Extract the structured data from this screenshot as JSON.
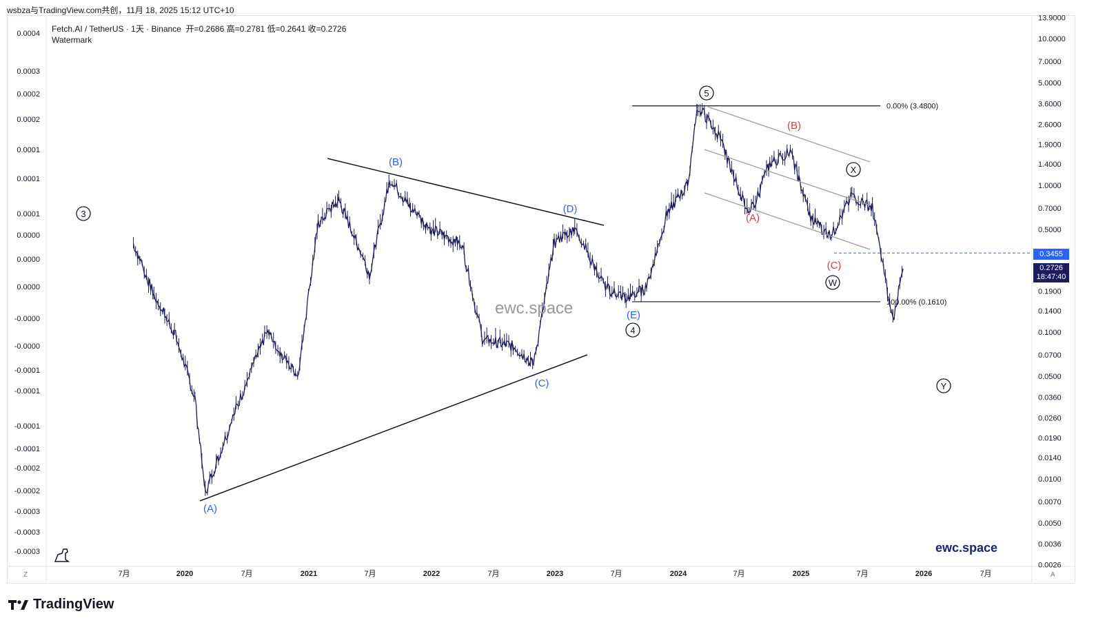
{
  "caption": "wsbza与TradingView.com共创，11月 18, 2025 15:12 UTC+10",
  "symbol_line": "Fetch.AI / TetherUS · 1天 · Binance",
  "ohlc": "开=0.2686  高=0.2781  低=0.2641  收=0.2726",
  "indicator_name": "Watermark",
  "watermark_text": "ewc.space",
  "brand_text": "ewc.space",
  "logo_text": "TradingView",
  "corner_left": "Z",
  "corner_right": "A",
  "dashed_price_tag": "0.3455",
  "last_price": "0.2726",
  "countdown": "18:47:40",
  "colors": {
    "candle": "#1a1a5e",
    "blue_label": "#2962ff",
    "red_label": "#e53935",
    "grid": "#e0e3eb",
    "dashed_line": "#2962ff"
  },
  "chart_data": {
    "type": "line",
    "title": "Fetch.AI / TetherUS · 1天 · Binance",
    "x_ticks": [
      "7月",
      "2020",
      "7月",
      "2021",
      "7月",
      "2022",
      "7月",
      "2023",
      "7月",
      "2024",
      "7月",
      "2025",
      "7月",
      "2026",
      "7月"
    ],
    "y_right_ticks": [
      "13.9000",
      "10.0000",
      "7.0000",
      "5.0000",
      "3.6000",
      "2.6000",
      "1.9000",
      "1.4000",
      "1.0000",
      "0.7000",
      "0.5000",
      "0.3455",
      "0.2726",
      "0.1900",
      "0.1400",
      "0.1000",
      "0.0700",
      "0.0500",
      "0.0360",
      "0.0260",
      "0.0190",
      "0.0140",
      "0.0100",
      "0.0070",
      "0.0050",
      "0.0036",
      "0.0026"
    ],
    "y_left_ticks": [
      "0.0004",
      "0.0003",
      "0.0002",
      "0.0002",
      "0.0001",
      "0.0001",
      "0.0001",
      "0.0000",
      "0.0000",
      "0.0000",
      "-0.0000",
      "-0.0000",
      "-0.0001",
      "-0.0001",
      "-0.0001",
      "-0.0001",
      "-0.0002",
      "-0.0002",
      "-0.0003",
      "-0.0003",
      "-0.0003"
    ],
    "log_scale": true,
    "series": [
      {
        "x": [
          "2019-08",
          "2019-10",
          "2019-12",
          "2020-02",
          "2020-03",
          "2020-06",
          "2020-09",
          "2020-12",
          "2021-02",
          "2021-04",
          "2021-07",
          "2021-09",
          "2021-11",
          "2022-01",
          "2022-04",
          "2022-06",
          "2022-09",
          "2022-11",
          "2023-01",
          "2023-03",
          "2023-06",
          "2023-08",
          "2023-10",
          "2023-12",
          "2024-02",
          "2024-03",
          "2024-05",
          "2024-08",
          "2024-10",
          "2024-12",
          "2025-02",
          "2025-04",
          "2025-06",
          "2025-08",
          "2025-10",
          "2025-11"
        ],
        "y": [
          0.4,
          0.18,
          0.1,
          0.035,
          0.008,
          0.03,
          0.1,
          0.05,
          0.55,
          0.8,
          0.25,
          1.1,
          0.7,
          0.5,
          0.4,
          0.09,
          0.08,
          0.06,
          0.4,
          0.52,
          0.2,
          0.17,
          0.2,
          0.65,
          1.0,
          3.48,
          2.2,
          0.62,
          1.4,
          1.7,
          0.6,
          0.45,
          0.85,
          0.7,
          0.12,
          0.27
        ]
      }
    ],
    "annotations": [
      {
        "label": "3",
        "style": "circled",
        "color": "#131722"
      },
      {
        "label": "(A)",
        "color": "#2962ff"
      },
      {
        "label": "(B)",
        "color": "#2962ff"
      },
      {
        "label": "(C)",
        "color": "#2962ff"
      },
      {
        "label": "(D)",
        "color": "#2962ff"
      },
      {
        "label": "(E)",
        "color": "#2962ff"
      },
      {
        "label": "4",
        "style": "circled",
        "color": "#131722"
      },
      {
        "label": "5",
        "style": "circled",
        "color": "#131722"
      },
      {
        "label": "(A)",
        "color": "#e53935"
      },
      {
        "label": "(B)",
        "color": "#e53935"
      },
      {
        "label": "(C)",
        "color": "#e53935"
      },
      {
        "label": "W",
        "style": "circled",
        "color": "#131722"
      },
      {
        "label": "X",
        "style": "circled",
        "color": "#131722"
      },
      {
        "label": "Y",
        "style": "circled",
        "color": "#131722"
      }
    ],
    "fib_levels": [
      {
        "label": "0.00% (3.4800)",
        "value": 3.48
      },
      {
        "label": "100.00% (0.1610)",
        "value": 0.161
      }
    ],
    "grid": false
  }
}
